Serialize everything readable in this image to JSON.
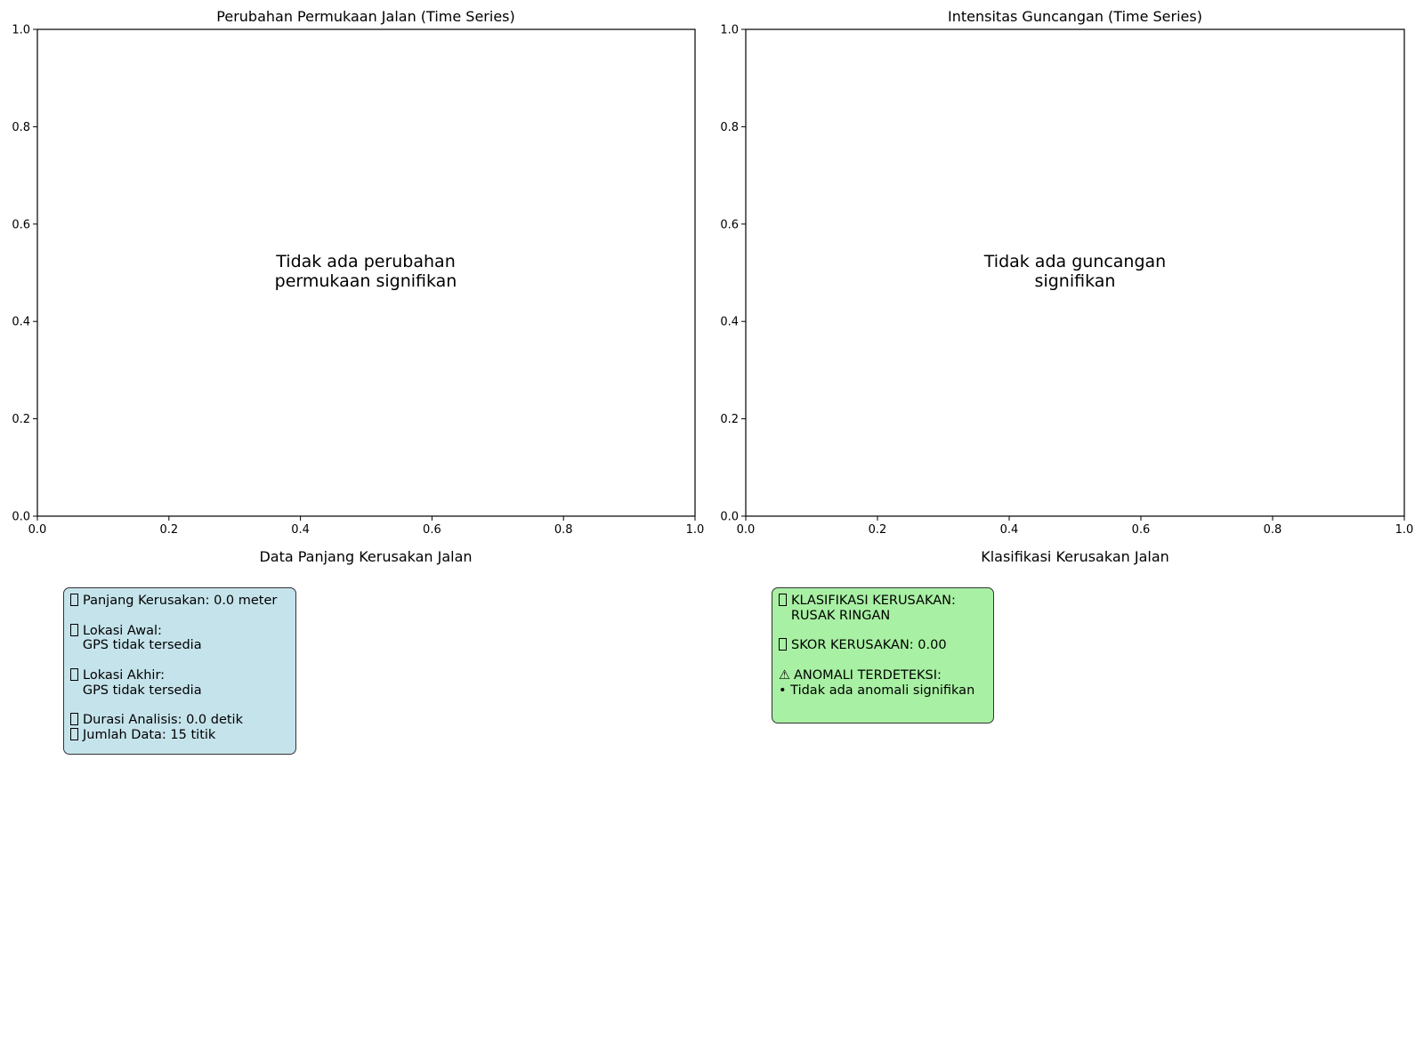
{
  "charts": [
    {
      "title": "Perubahan Permukaan Jalan (Time Series)",
      "message": [
        "Tidak ada perubahan",
        "permukaan signifikan"
      ]
    },
    {
      "title": "Intensitas Guncangan (Time Series)",
      "message": [
        "Tidak ada guncangan",
        "signifikan"
      ]
    }
  ],
  "info_panels": [
    {
      "title": "Data Panjang Kerusakan Jalan",
      "box_color": "#c5e3eb",
      "lines": [
        {
          "icon": "ruler-icon",
          "text": "Panjang Kerusakan: 0.0 meter"
        },
        {
          "icon": "",
          "text": ""
        },
        {
          "icon": "pin-icon",
          "text": "Lokasi Awal:"
        },
        {
          "icon": "",
          "text": "   GPS tidak tersedia"
        },
        {
          "icon": "",
          "text": ""
        },
        {
          "icon": "flag-icon",
          "text": "Lokasi Akhir:"
        },
        {
          "icon": "",
          "text": "   GPS tidak tersedia"
        },
        {
          "icon": "",
          "text": ""
        },
        {
          "icon": "clock-icon",
          "text": "Durasi Analisis: 0.0 detik"
        },
        {
          "icon": "chart-icon",
          "text": "Jumlah Data: 15 titik"
        }
      ]
    },
    {
      "title": "Klasifikasi Kerusakan Jalan",
      "box_color": "#a8f0a3",
      "lines": [
        {
          "icon": "road-icon",
          "text": "KLASIFIKASI KERUSAKAN:"
        },
        {
          "icon": "",
          "text": "   RUSAK RINGAN"
        },
        {
          "icon": "",
          "text": ""
        },
        {
          "icon": "score-icon",
          "text": "SKOR KERUSAKAN: 0.00"
        },
        {
          "icon": "",
          "text": ""
        },
        {
          "icon": "warning-icon",
          "glyph": "⚠",
          "text": "ANOMALI TERDETEKSI:"
        },
        {
          "icon": "",
          "text": "• Tidak ada anomali signifikan"
        }
      ]
    }
  ],
  "chart_data": [
    {
      "type": "line",
      "title": "Perubahan Permukaan Jalan (Time Series)",
      "series": [],
      "xlim": [
        0,
        1
      ],
      "ylim": [
        0,
        1
      ],
      "xticks": [
        "0.0",
        "0.2",
        "0.4",
        "0.6",
        "0.8",
        "1.0"
      ],
      "yticks": [
        "0.0",
        "0.2",
        "0.4",
        "0.6",
        "0.8",
        "1.0"
      ],
      "annotation": "Tidak ada perubahan\npermukaan signifikan",
      "grid": false
    },
    {
      "type": "line",
      "title": "Intensitas Guncangan (Time Series)",
      "series": [],
      "xlim": [
        0,
        1
      ],
      "ylim": [
        0,
        1
      ],
      "xticks": [
        "0.0",
        "0.2",
        "0.4",
        "0.6",
        "0.8",
        "1.0"
      ],
      "yticks": [
        "0.0",
        "0.2",
        "0.4",
        "0.6",
        "0.8",
        "1.0"
      ],
      "annotation": "Tidak ada guncangan\nsignifikan",
      "grid": false
    }
  ]
}
